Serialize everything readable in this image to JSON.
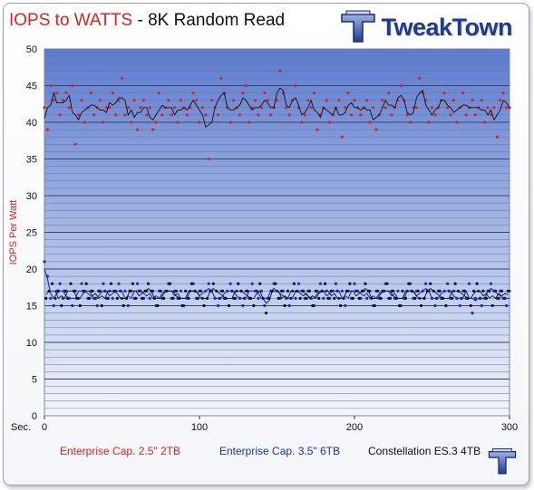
{
  "header": {
    "title_part1": "IOPS to WATTS",
    "title_part2": " - 8K Random Read",
    "logo_text": "TweakTown",
    "logo_icon": "tweaktown-logo-icon"
  },
  "colors": {
    "series_red": "#e02020",
    "series_blue": "#1a2fb8",
    "series_black": "#111111",
    "plot_top": "#5a7bd0",
    "plot_bottom": "#f2f5fc",
    "title_red": "#e02020",
    "logo_blue": "#1f3a93"
  },
  "chart_data": {
    "type": "scatter",
    "title": "IOPS to WATTS - 8K Random Read",
    "xlabel": "Sec.",
    "ylabel": "IOPS Per Watt",
    "xlim": [
      0,
      300
    ],
    "ylim": [
      0,
      50
    ],
    "x_ticks": [
      0,
      100,
      200,
      300
    ],
    "y_ticks": [
      0,
      5,
      10,
      15,
      20,
      25,
      30,
      35,
      40,
      45,
      50
    ],
    "grid": "horizontal, every 1 unit",
    "legend_position": "bottom",
    "trendline": "moving average per series",
    "series": [
      {
        "name": "Enterprise Cap. 2.5\" 2TB",
        "color": "#e02020",
        "x": [
          0,
          2,
          4,
          6,
          8,
          10,
          12,
          14,
          16,
          18,
          20,
          22,
          24,
          26,
          28,
          30,
          32,
          34,
          36,
          38,
          40,
          42,
          44,
          46,
          48,
          50,
          52,
          54,
          56,
          58,
          60,
          62,
          64,
          66,
          68,
          70,
          72,
          74,
          76,
          78,
          80,
          82,
          84,
          86,
          88,
          90,
          92,
          94,
          96,
          98,
          100,
          102,
          104,
          106,
          108,
          110,
          112,
          114,
          116,
          118,
          120,
          122,
          124,
          126,
          128,
          130,
          132,
          134,
          136,
          138,
          140,
          142,
          144,
          146,
          148,
          150,
          152,
          154,
          156,
          158,
          160,
          162,
          164,
          166,
          168,
          170,
          172,
          174,
          176,
          178,
          180,
          182,
          184,
          186,
          188,
          190,
          192,
          194,
          196,
          198,
          200,
          202,
          204,
          206,
          208,
          210,
          212,
          214,
          216,
          218,
          220,
          222,
          224,
          226,
          228,
          230,
          232,
          234,
          236,
          238,
          240,
          242,
          244,
          246,
          248,
          250,
          252,
          254,
          256,
          258,
          260,
          262,
          264,
          266,
          268,
          270,
          272,
          274,
          276,
          278,
          280,
          282,
          284,
          286,
          288,
          290,
          292,
          294,
          296,
          298,
          300
        ],
        "y": [
          42,
          39,
          45,
          43,
          44,
          41,
          43,
          44,
          42,
          45,
          37,
          41,
          43,
          40,
          42,
          44,
          41,
          42,
          43,
          40,
          42,
          42,
          44,
          41,
          43,
          46,
          41,
          42,
          40,
          43,
          39,
          42,
          43,
          41,
          42,
          39,
          40,
          44,
          41,
          42,
          43,
          41,
          42,
          40,
          43,
          42,
          41,
          42,
          44,
          43,
          40,
          42,
          41,
          35,
          43,
          42,
          41,
          46,
          44,
          42,
          40,
          43,
          42,
          41,
          44,
          45,
          40,
          42,
          43,
          41,
          42,
          44,
          43,
          41,
          42,
          43,
          47,
          44,
          42,
          41,
          43,
          45,
          42,
          40,
          41,
          43,
          42,
          44,
          39,
          41,
          42,
          43,
          40,
          41,
          42,
          43,
          38,
          42,
          44,
          41,
          43,
          42,
          41,
          42,
          43,
          40,
          42,
          39,
          41,
          43,
          42,
          44,
          41,
          42,
          43,
          45,
          43,
          41,
          40,
          42,
          42,
          46,
          44,
          43,
          40,
          42,
          41,
          42,
          43,
          44,
          42,
          41,
          43,
          40,
          42,
          44,
          41,
          42,
          43,
          41,
          42,
          43,
          40,
          42,
          41,
          42,
          38,
          43,
          44,
          42,
          42
        ]
      },
      {
        "name": "Enterprise Cap. 3.5\" 6TB",
        "color": "#1a2fb8",
        "x": [
          0,
          2,
          4,
          6,
          8,
          10,
          12,
          14,
          16,
          18,
          20,
          22,
          24,
          26,
          28,
          30,
          32,
          34,
          36,
          38,
          40,
          42,
          44,
          46,
          48,
          50,
          52,
          54,
          56,
          58,
          60,
          62,
          64,
          66,
          68,
          70,
          72,
          74,
          76,
          78,
          80,
          82,
          84,
          86,
          88,
          90,
          92,
          94,
          96,
          98,
          100,
          102,
          104,
          106,
          108,
          110,
          112,
          114,
          116,
          118,
          120,
          122,
          124,
          126,
          128,
          130,
          132,
          134,
          136,
          138,
          140,
          142,
          144,
          146,
          148,
          150,
          152,
          154,
          156,
          158,
          160,
          162,
          164,
          166,
          168,
          170,
          172,
          174,
          176,
          178,
          180,
          182,
          184,
          186,
          188,
          190,
          192,
          194,
          196,
          198,
          200,
          202,
          204,
          206,
          208,
          210,
          212,
          214,
          216,
          218,
          220,
          222,
          224,
          226,
          228,
          230,
          232,
          234,
          236,
          238,
          240,
          242,
          244,
          246,
          248,
          250,
          252,
          254,
          256,
          258,
          260,
          262,
          264,
          266,
          268,
          270,
          272,
          274,
          276,
          278,
          280,
          282,
          284,
          286,
          288,
          290,
          292,
          294,
          296,
          298,
          300
        ],
        "y": [
          21,
          19,
          16,
          15,
          17,
          18,
          16,
          17,
          16,
          15,
          17,
          16,
          18,
          17,
          16,
          17,
          16,
          15,
          17,
          18,
          16,
          17,
          16,
          17,
          18,
          16,
          17,
          15,
          17,
          16,
          18,
          17,
          16,
          17,
          16,
          17,
          15,
          17,
          16,
          17,
          18,
          16,
          17,
          16,
          17,
          15,
          16,
          17,
          18,
          16,
          17,
          16,
          17,
          18,
          17,
          16,
          15,
          17,
          16,
          17,
          18,
          16,
          17,
          16,
          15,
          17,
          16,
          18,
          17,
          16,
          17,
          15,
          16,
          17,
          18,
          17,
          16,
          17,
          16,
          15,
          17,
          16,
          18,
          17,
          16,
          17,
          16,
          15,
          17,
          18,
          16,
          17,
          16,
          17,
          18,
          16,
          17,
          15,
          17,
          16,
          18,
          17,
          16,
          17,
          16,
          17,
          15,
          17,
          16,
          17,
          18,
          16,
          17,
          16,
          17,
          15,
          16,
          17,
          18,
          16,
          17,
          16,
          17,
          18,
          17,
          16,
          15,
          17,
          16,
          17,
          18,
          16,
          17,
          16,
          15,
          17,
          16,
          18,
          14,
          16,
          17,
          15,
          16,
          17,
          18,
          17,
          16,
          17,
          16,
          15,
          17
        ]
      },
      {
        "name": "Constellation ES.3 4TB",
        "color": "#111111",
        "x": [
          1,
          3,
          5,
          7,
          9,
          11,
          13,
          15,
          17,
          19,
          21,
          23,
          25,
          27,
          29,
          31,
          33,
          35,
          37,
          39,
          41,
          43,
          45,
          47,
          49,
          51,
          53,
          55,
          57,
          59,
          61,
          63,
          65,
          67,
          69,
          71,
          73,
          75,
          77,
          79,
          81,
          83,
          85,
          87,
          89,
          91,
          93,
          95,
          97,
          99,
          101,
          103,
          105,
          107,
          109,
          111,
          113,
          115,
          117,
          119,
          121,
          123,
          125,
          127,
          129,
          131,
          133,
          135,
          137,
          139,
          141,
          143,
          145,
          147,
          149,
          151,
          153,
          155,
          157,
          159,
          161,
          163,
          165,
          167,
          169,
          171,
          173,
          175,
          177,
          179,
          181,
          183,
          185,
          187,
          189,
          191,
          193,
          195,
          197,
          199,
          201,
          203,
          205,
          207,
          209,
          211,
          213,
          215,
          217,
          219,
          221,
          223,
          225,
          227,
          229,
          231,
          233,
          235,
          237,
          239,
          241,
          243,
          245,
          247,
          249,
          251,
          253,
          255,
          257,
          259,
          261,
          263,
          265,
          267,
          269,
          271,
          273,
          275,
          277,
          279,
          281,
          283,
          285,
          287,
          289,
          291,
          293,
          295,
          297,
          299
        ],
        "y": [
          16,
          17,
          18,
          16,
          17,
          15,
          17,
          16,
          18,
          17,
          16,
          15,
          17,
          18,
          16,
          17,
          16,
          17,
          15,
          17,
          16,
          18,
          17,
          16,
          17,
          15,
          16,
          17,
          18,
          16,
          17,
          16,
          17,
          18,
          17,
          16,
          15,
          17,
          16,
          17,
          18,
          16,
          17,
          16,
          15,
          17,
          16,
          18,
          17,
          16,
          17,
          15,
          16,
          17,
          18,
          17,
          16,
          17,
          16,
          15,
          17,
          16,
          18,
          17,
          16,
          17,
          16,
          15,
          17,
          18,
          16,
          14,
          16,
          17,
          18,
          16,
          17,
          15,
          17,
          16,
          18,
          17,
          16,
          17,
          16,
          17,
          15,
          17,
          16,
          17,
          18,
          16,
          17,
          16,
          17,
          15,
          16,
          17,
          18,
          16,
          17,
          16,
          17,
          18,
          17,
          16,
          15,
          17,
          16,
          17,
          18,
          16,
          17,
          16,
          15,
          17,
          16,
          18,
          17,
          16,
          17,
          15,
          16,
          17,
          18,
          17,
          16,
          17,
          16,
          15,
          17,
          16,
          18,
          17,
          16,
          17,
          16,
          15,
          17,
          18,
          16,
          17,
          16,
          17,
          15,
          17,
          16,
          17,
          16,
          17
        ]
      }
    ]
  }
}
